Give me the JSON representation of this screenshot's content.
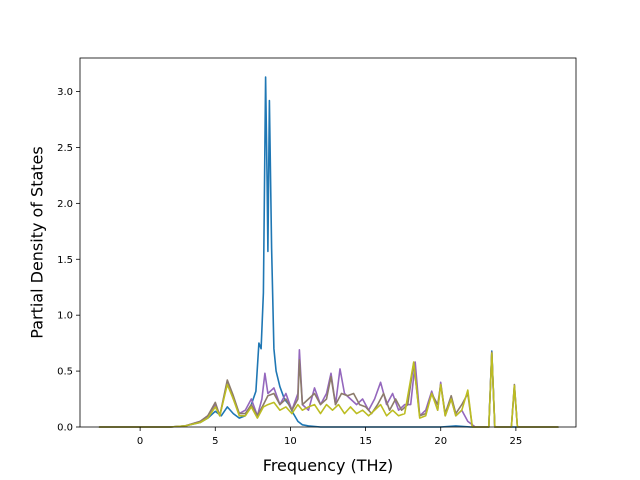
{
  "chart_data": {
    "type": "line",
    "title": "",
    "xlabel": "Frequency (THz)",
    "ylabel": "Partial Density of States",
    "xlim": [
      -4.0,
      29.0
    ],
    "ylim": [
      0.0,
      3.3
    ],
    "xticks": [
      0,
      5,
      10,
      15,
      20,
      25
    ],
    "yticks": [
      0.0,
      0.5,
      1.0,
      1.5,
      2.0,
      2.5,
      3.0
    ],
    "xtick_labels": [
      "0",
      "5",
      "10",
      "15",
      "20",
      "25"
    ],
    "ytick_labels": [
      "0.0",
      "0.5",
      "1.0",
      "1.5",
      "2.0",
      "2.5",
      "3.0"
    ],
    "grid": false,
    "legend": "none",
    "series": [
      {
        "color": "#1f77b4",
        "points": [
          [
            -2.7,
            0
          ],
          [
            2,
            0
          ],
          [
            3,
            0.01
          ],
          [
            4,
            0.04
          ],
          [
            4.5,
            0.08
          ],
          [
            5,
            0.14
          ],
          [
            5.4,
            0.1
          ],
          [
            5.8,
            0.18
          ],
          [
            6.2,
            0.12
          ],
          [
            6.6,
            0.08
          ],
          [
            7,
            0.1
          ],
          [
            7.4,
            0.2
          ],
          [
            7.7,
            0.32
          ],
          [
            7.9,
            0.75
          ],
          [
            8.05,
            0.7
          ],
          [
            8.2,
            1.2
          ],
          [
            8.35,
            3.13
          ],
          [
            8.45,
            2.2
          ],
          [
            8.5,
            1.57
          ],
          [
            8.6,
            2.92
          ],
          [
            8.75,
            1.6
          ],
          [
            8.9,
            0.7
          ],
          [
            9.05,
            0.5
          ],
          [
            9.3,
            0.36
          ],
          [
            9.6,
            0.25
          ],
          [
            9.9,
            0.2
          ],
          [
            10.2,
            0.12
          ],
          [
            10.5,
            0.05
          ],
          [
            10.8,
            0.02
          ],
          [
            11.2,
            0.01
          ],
          [
            12,
            0
          ],
          [
            20,
            0
          ],
          [
            21,
            0.01
          ],
          [
            22,
            0
          ],
          [
            23.2,
            0
          ],
          [
            23.4,
            0.68
          ],
          [
            23.6,
            0
          ],
          [
            27.8,
            0
          ]
        ]
      },
      {
        "color": "#9467bd",
        "points": [
          [
            -2.7,
            0
          ],
          [
            2,
            0
          ],
          [
            3,
            0.01
          ],
          [
            4,
            0.05
          ],
          [
            4.5,
            0.1
          ],
          [
            5,
            0.2
          ],
          [
            5.3,
            0.1
          ],
          [
            5.8,
            0.4
          ],
          [
            6.2,
            0.25
          ],
          [
            6.6,
            0.12
          ],
          [
            7,
            0.15
          ],
          [
            7.4,
            0.25
          ],
          [
            7.8,
            0.1
          ],
          [
            8.1,
            0.25
          ],
          [
            8.3,
            0.48
          ],
          [
            8.5,
            0.3
          ],
          [
            8.9,
            0.35
          ],
          [
            9.3,
            0.2
          ],
          [
            9.7,
            0.3
          ],
          [
            10.1,
            0.15
          ],
          [
            10.5,
            0.3
          ],
          [
            10.6,
            0.69
          ],
          [
            10.8,
            0.2
          ],
          [
            11.2,
            0.15
          ],
          [
            11.6,
            0.35
          ],
          [
            12,
            0.2
          ],
          [
            12.4,
            0.3
          ],
          [
            12.7,
            0.48
          ],
          [
            13,
            0.2
          ],
          [
            13.3,
            0.52
          ],
          [
            13.6,
            0.3
          ],
          [
            14,
            0.25
          ],
          [
            14.4,
            0.2
          ],
          [
            14.8,
            0.25
          ],
          [
            15.2,
            0.15
          ],
          [
            15.6,
            0.25
          ],
          [
            16,
            0.4
          ],
          [
            16.4,
            0.2
          ],
          [
            16.8,
            0.3
          ],
          [
            17.2,
            0.15
          ],
          [
            17.6,
            0.2
          ],
          [
            18,
            0.2
          ],
          [
            18.3,
            0.58
          ],
          [
            18.6,
            0.1
          ],
          [
            19,
            0.15
          ],
          [
            19.4,
            0.32
          ],
          [
            19.8,
            0.15
          ],
          [
            20,
            0.4
          ],
          [
            20.3,
            0.1
          ],
          [
            20.7,
            0.25
          ],
          [
            21,
            0.1
          ],
          [
            21.4,
            0.15
          ],
          [
            21.8,
            0.05
          ],
          [
            22.3,
            0
          ],
          [
            23.2,
            0
          ],
          [
            23.4,
            0.66
          ],
          [
            23.6,
            0
          ],
          [
            24.7,
            0
          ],
          [
            24.9,
            0.37
          ],
          [
            25.1,
            0
          ],
          [
            27.8,
            0
          ]
        ]
      },
      {
        "color": "#8c7b6b",
        "points": [
          [
            -2.7,
            0
          ],
          [
            2,
            0
          ],
          [
            3,
            0.01
          ],
          [
            4,
            0.05
          ],
          [
            4.5,
            0.1
          ],
          [
            5,
            0.22
          ],
          [
            5.3,
            0.1
          ],
          [
            5.8,
            0.42
          ],
          [
            6.2,
            0.28
          ],
          [
            6.6,
            0.12
          ],
          [
            7,
            0.12
          ],
          [
            7.4,
            0.2
          ],
          [
            7.8,
            0.1
          ],
          [
            8.2,
            0.2
          ],
          [
            8.5,
            0.28
          ],
          [
            8.9,
            0.3
          ],
          [
            9.3,
            0.2
          ],
          [
            9.7,
            0.25
          ],
          [
            10.1,
            0.15
          ],
          [
            10.5,
            0.25
          ],
          [
            10.6,
            0.6
          ],
          [
            10.8,
            0.2
          ],
          [
            11.2,
            0.25
          ],
          [
            11.6,
            0.3
          ],
          [
            12,
            0.2
          ],
          [
            12.4,
            0.25
          ],
          [
            12.7,
            0.45
          ],
          [
            13,
            0.2
          ],
          [
            13.4,
            0.3
          ],
          [
            13.8,
            0.28
          ],
          [
            14.2,
            0.3
          ],
          [
            14.6,
            0.2
          ],
          [
            15,
            0.18
          ],
          [
            15.4,
            0.12
          ],
          [
            15.8,
            0.2
          ],
          [
            16.2,
            0.3
          ],
          [
            16.6,
            0.15
          ],
          [
            17,
            0.25
          ],
          [
            17.4,
            0.15
          ],
          [
            17.8,
            0.2
          ],
          [
            18.2,
            0.57
          ],
          [
            18.6,
            0.1
          ],
          [
            19,
            0.12
          ],
          [
            19.4,
            0.3
          ],
          [
            19.8,
            0.2
          ],
          [
            20,
            0.38
          ],
          [
            20.3,
            0.12
          ],
          [
            20.7,
            0.28
          ],
          [
            21,
            0.12
          ],
          [
            21.4,
            0.2
          ],
          [
            21.8,
            0.3
          ],
          [
            22.1,
            0
          ],
          [
            23.2,
            0
          ],
          [
            23.4,
            0.67
          ],
          [
            23.6,
            0
          ],
          [
            24.7,
            0
          ],
          [
            24.9,
            0.38
          ],
          [
            25.1,
            0
          ],
          [
            27.8,
            0
          ]
        ]
      },
      {
        "color": "#bcbd22",
        "points": [
          [
            -2.7,
            0
          ],
          [
            2,
            0
          ],
          [
            3,
            0.01
          ],
          [
            4,
            0.04
          ],
          [
            4.5,
            0.08
          ],
          [
            5,
            0.18
          ],
          [
            5.3,
            0.1
          ],
          [
            5.8,
            0.38
          ],
          [
            6.2,
            0.25
          ],
          [
            6.6,
            0.1
          ],
          [
            7,
            0.1
          ],
          [
            7.4,
            0.18
          ],
          [
            7.8,
            0.08
          ],
          [
            8.2,
            0.18
          ],
          [
            8.5,
            0.2
          ],
          [
            8.9,
            0.22
          ],
          [
            9.3,
            0.15
          ],
          [
            9.7,
            0.18
          ],
          [
            10.1,
            0.12
          ],
          [
            10.5,
            0.2
          ],
          [
            10.8,
            0.15
          ],
          [
            11.2,
            0.18
          ],
          [
            11.6,
            0.2
          ],
          [
            12,
            0.12
          ],
          [
            12.4,
            0.2
          ],
          [
            12.8,
            0.15
          ],
          [
            13.2,
            0.2
          ],
          [
            13.6,
            0.12
          ],
          [
            14,
            0.18
          ],
          [
            14.4,
            0.12
          ],
          [
            14.8,
            0.15
          ],
          [
            15.2,
            0.1
          ],
          [
            15.6,
            0.15
          ],
          [
            16,
            0.2
          ],
          [
            16.4,
            0.1
          ],
          [
            16.8,
            0.15
          ],
          [
            17.2,
            0.1
          ],
          [
            17.6,
            0.12
          ],
          [
            18.2,
            0.58
          ],
          [
            18.6,
            0.08
          ],
          [
            19,
            0.1
          ],
          [
            19.4,
            0.3
          ],
          [
            19.8,
            0.15
          ],
          [
            20,
            0.38
          ],
          [
            20.3,
            0.1
          ],
          [
            20.7,
            0.25
          ],
          [
            21,
            0.1
          ],
          [
            21.4,
            0.15
          ],
          [
            21.8,
            0.33
          ],
          [
            22.1,
            0
          ],
          [
            23.2,
            0
          ],
          [
            23.4,
            0.66
          ],
          [
            23.6,
            0
          ],
          [
            24.7,
            0
          ],
          [
            24.9,
            0.37
          ],
          [
            25.1,
            0
          ],
          [
            27.8,
            0
          ]
        ]
      }
    ]
  }
}
